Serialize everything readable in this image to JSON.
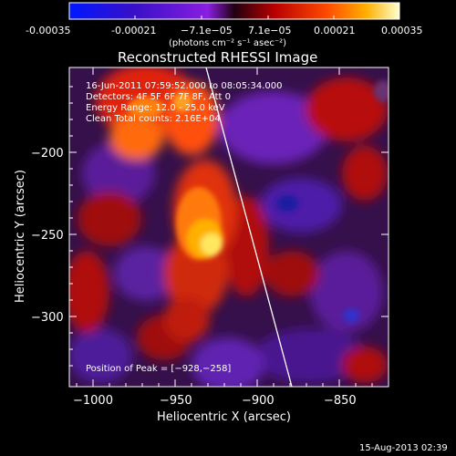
{
  "colorbar": {
    "tick_labels": [
      "-0.00035",
      "-0.00021",
      "−7.1e−05",
      "7.1e−05",
      "0.00021",
      "0.00035"
    ],
    "units": "(photons cm⁻² s⁻¹ asec⁻²)"
  },
  "image": {
    "title": "Reconstructed RHESSI Image",
    "x_axis_label": "Heliocentric X (arcsec)",
    "y_axis_label": "Heliocentric Y (arcsec)",
    "x_ticks": [
      "−1000",
      "−950",
      "−900",
      "−850"
    ],
    "y_ticks": [
      "−200",
      "−250",
      "−300"
    ],
    "info_lines": [
      "16-Jun-2011 07:59:52.000 to 08:05:34.000",
      "Detectors: 4F 5F 6F 7F 8F, Att 0",
      "Energy Range: 12.0 - 25.0 keV",
      "Clean    Total counts: 2.16E+04"
    ],
    "peak_label": "Position of Peak = [−928,−258]"
  },
  "footer": {
    "timestamp": "15-Aug-2013 02:39"
  },
  "colors": {
    "background": "#000000",
    "frame": "#ffffff",
    "limb_line": "#ffffff"
  }
}
